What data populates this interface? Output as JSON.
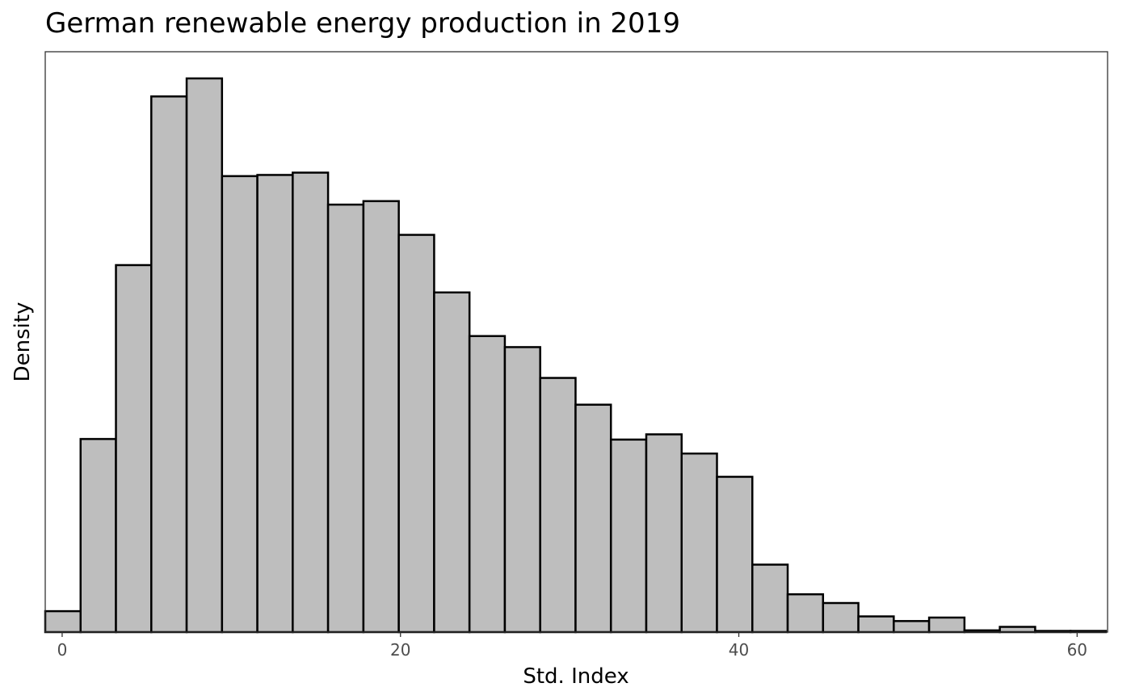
{
  "chart_data": {
    "type": "bar",
    "title": "German renewable energy production in 2019",
    "xlabel": "Std. Index",
    "ylabel": "Density",
    "xlim": [
      -1.0,
      61.8
    ],
    "ylim": [
      0,
      1.0
    ],
    "x_ticks": [
      0,
      20,
      40,
      60
    ],
    "x_tick_labels": [
      "0",
      "20",
      "40",
      "60"
    ],
    "y_ticks_shown": false,
    "grid": false,
    "bin_width": 2.09,
    "bin_start": -1.0,
    "values": [
      0.036,
      0.332,
      0.631,
      0.921,
      0.952,
      0.784,
      0.786,
      0.79,
      0.735,
      0.741,
      0.683,
      0.584,
      0.509,
      0.49,
      0.437,
      0.391,
      0.331,
      0.34,
      0.307,
      0.267,
      0.116,
      0.065,
      0.05,
      0.027,
      0.019,
      0.025,
      0.003,
      0.009,
      0.002,
      0.002
    ]
  }
}
